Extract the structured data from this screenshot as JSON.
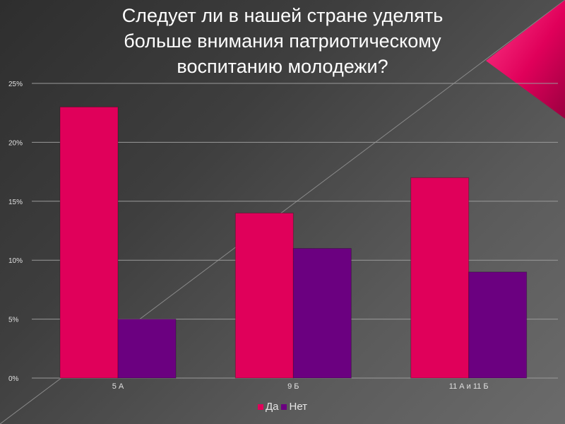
{
  "title": "Следует  ли в нашей стране уделять\nбольше внимания патриотическому\nвоспитанию молодежи?",
  "colors": {
    "series_yes": "#e0005a",
    "series_no": "#6b0080",
    "accent_triangle": "#e8005f"
  },
  "chart_data": {
    "type": "bar",
    "title": "Следует  ли в нашей стране уделять больше внимания патриотическому воспитанию молодежи?",
    "categories": [
      "5 А",
      "9 Б",
      "11 А и 11 Б"
    ],
    "series": [
      {
        "name": "Да",
        "values": [
          23,
          14,
          17
        ]
      },
      {
        "name": "Нет",
        "values": [
          5,
          11,
          9
        ]
      }
    ],
    "y_ticks": [
      "0%",
      "5%",
      "10%",
      "15%",
      "20%",
      "25%"
    ],
    "y_tick_values": [
      0,
      5,
      10,
      15,
      20,
      25
    ],
    "ylim": [
      0,
      25
    ],
    "y_unit": "%",
    "xlabel": "",
    "ylabel": "",
    "grid": true,
    "legend_position": "bottom"
  },
  "legend": {
    "items": [
      {
        "label": "Да"
      },
      {
        "label": "Нет"
      }
    ]
  }
}
